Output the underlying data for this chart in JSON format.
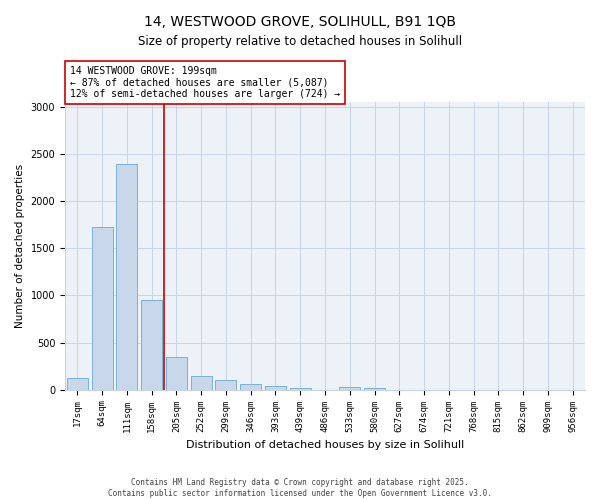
{
  "title": "14, WESTWOOD GROVE, SOLIHULL, B91 1QB",
  "subtitle": "Size of property relative to detached houses in Solihull",
  "xlabel": "Distribution of detached houses by size in Solihull",
  "ylabel": "Number of detached properties",
  "categories": [
    "17sqm",
    "64sqm",
    "111sqm",
    "158sqm",
    "205sqm",
    "252sqm",
    "299sqm",
    "346sqm",
    "393sqm",
    "439sqm",
    "486sqm",
    "533sqm",
    "580sqm",
    "627sqm",
    "674sqm",
    "721sqm",
    "768sqm",
    "815sqm",
    "862sqm",
    "909sqm",
    "956sqm"
  ],
  "values": [
    120,
    1720,
    2390,
    950,
    350,
    150,
    100,
    65,
    40,
    20,
    0,
    25,
    15,
    0,
    0,
    0,
    0,
    0,
    0,
    0,
    0
  ],
  "bar_color": "#c8d8ea",
  "bar_edge_color": "#6aaad4",
  "grid_color": "#c8d4e4",
  "background_color": "#edf2f8",
  "red_line_index": 4,
  "annotation_line1": "14 WESTWOOD GROVE: 199sqm",
  "annotation_line2": "← 87% of detached houses are smaller (5,087)",
  "annotation_line3": "12% of semi-detached houses are larger (724) →",
  "annotation_box_color": "#ffffff",
  "annotation_box_edge_color": "#cc0000",
  "vline_color": "#cc0000",
  "footer_line1": "Contains HM Land Registry data © Crown copyright and database right 2025.",
  "footer_line2": "Contains public sector information licensed under the Open Government Licence v3.0.",
  "ylim": [
    0,
    3050
  ],
  "yticks": [
    0,
    500,
    1000,
    1500,
    2000,
    2500,
    3000
  ]
}
